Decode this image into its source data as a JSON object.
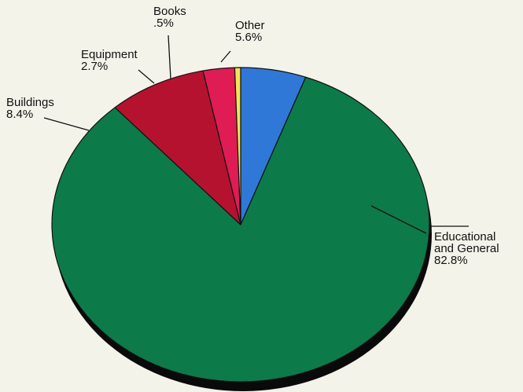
{
  "chart_data": {
    "type": "pie",
    "title": "",
    "style": "3d-disc",
    "slices": [
      {
        "name": "Other",
        "lines": [
          "Other",
          "5.6%"
        ],
        "value": 5.6,
        "color": "#2f78d8"
      },
      {
        "name": "Educational and General",
        "lines": [
          "Educational",
          "and General",
          "82.8%"
        ],
        "value": 82.8,
        "color": "#0d7a4a"
      },
      {
        "name": "Buildings",
        "lines": [
          "Buildings",
          "8.4%"
        ],
        "value": 8.4,
        "color": "#b5122f"
      },
      {
        "name": "Equipment",
        "lines": [
          "Equipment",
          "2.7%"
        ],
        "value": 2.7,
        "color": "#e01c54"
      },
      {
        "name": "Books",
        "lines": [
          "Books",
          ".5%"
        ],
        "value": 0.5,
        "color": "#f2e35a"
      }
    ],
    "edge_color": "#0a0a0a"
  }
}
